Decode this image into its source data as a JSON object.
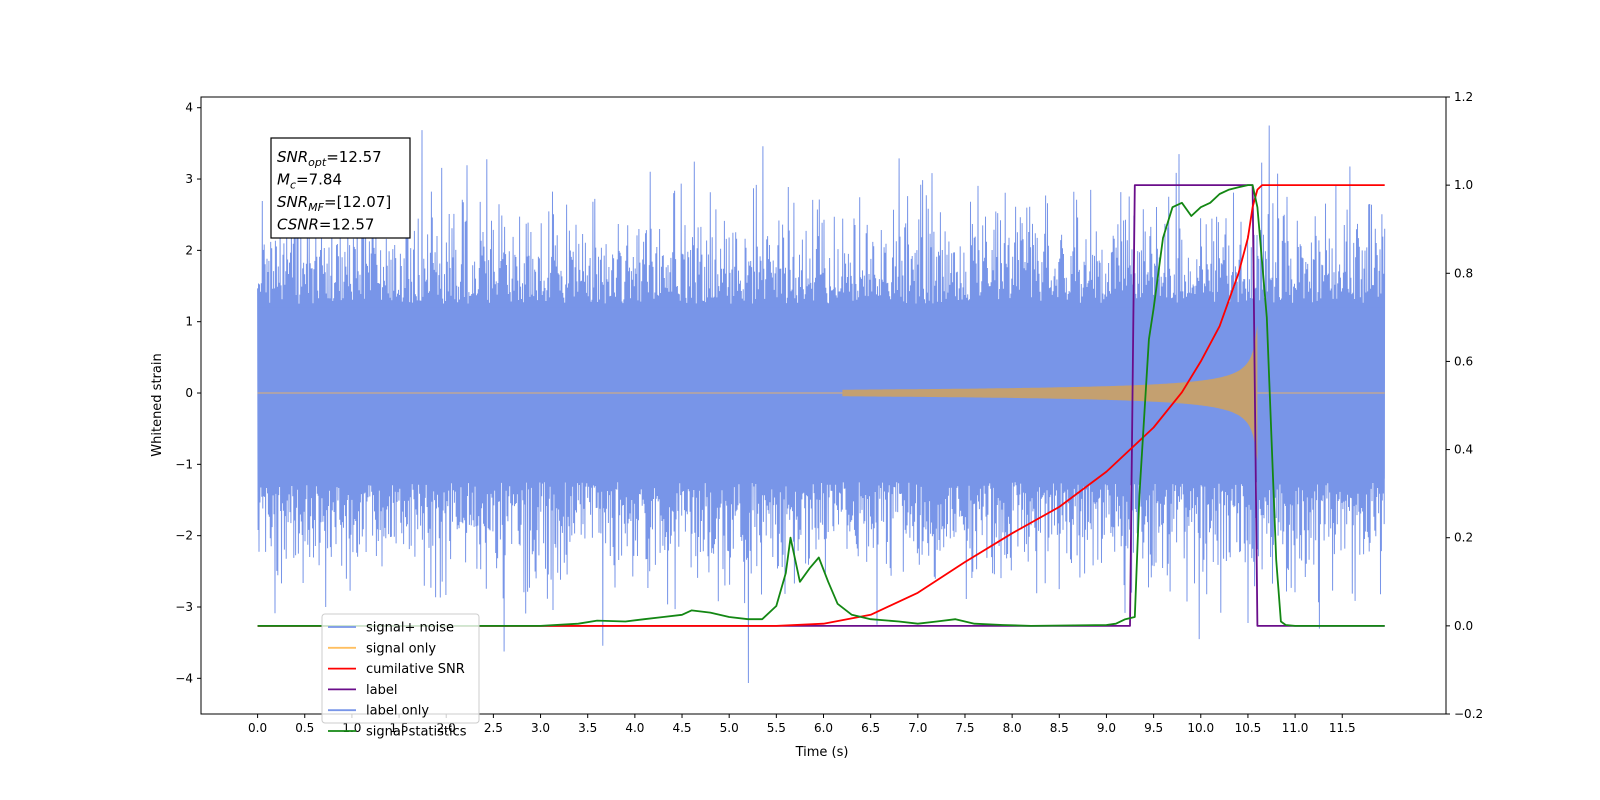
{
  "chart_data": {
    "type": "line",
    "xlabel": "Time (s)",
    "ylabel_left": "Whitened strain",
    "xlim": [
      -0.6,
      12.6
    ],
    "ylim_left": [
      -4.5,
      4.15
    ],
    "ylim_right": [
      -0.2,
      1.2
    ],
    "x_ticks": [
      "0.0",
      "0.5",
      "1.0",
      "1.5",
      "2.0",
      "2.5",
      "3.0",
      "3.5",
      "4.0",
      "4.5",
      "5.0",
      "5.5",
      "6.0",
      "6.5",
      "7.0",
      "7.5",
      "8.0",
      "8.5",
      "9.0",
      "9.5",
      "10.0",
      "10.5",
      "11.0",
      "11.5"
    ],
    "y_ticks_left": [
      "−4",
      "−3",
      "−2",
      "−1",
      "0",
      "1",
      "2",
      "3",
      "4"
    ],
    "y_ticks_right": [
      "−0.2",
      "0.0",
      "0.2",
      "0.4",
      "0.6",
      "0.8",
      "1.0",
      "1.2"
    ],
    "colors": {
      "noise": "#7895e8",
      "signal": "#c4a070",
      "cumulative": "#ff0000",
      "label": "#6a0d8a",
      "statistics": "#138713"
    },
    "legend": {
      "placement": "lower-left",
      "entries": [
        {
          "label": "signal+ noise",
          "color": "#7895e8"
        },
        {
          "label": "signal only",
          "color": "#ffbf60"
        },
        {
          "label": "cumilative SNR",
          "color": "#ff0000"
        },
        {
          "label": "label",
          "color": "#6a0d8a"
        },
        {
          "label": "label only",
          "color": "#7895e8"
        },
        {
          "label": "signal statistics",
          "color": "#138713"
        }
      ]
    },
    "annotation": [
      {
        "main": "SNR",
        "sub": "opt",
        "rest": "=12.57"
      },
      {
        "main": "M",
        "sub": "c",
        "rest": "=7.84"
      },
      {
        "main": "SNR",
        "sub": "MF",
        "rest": "=[12.07]"
      },
      {
        "main": "CSNR",
        "sub": "",
        "rest": "=12.57"
      }
    ],
    "series": [
      {
        "name": "label",
        "axis": "right",
        "x": [
          0.0,
          9.25,
          9.3,
          10.55,
          10.6,
          11.95
        ],
        "values": [
          0.0,
          0.0,
          1.0,
          1.0,
          0.0,
          0.0
        ]
      },
      {
        "name": "cumilative SNR",
        "axis": "right",
        "x": [
          0.0,
          5.5,
          6.0,
          6.5,
          7.0,
          7.5,
          8.0,
          8.5,
          9.0,
          9.5,
          9.8,
          10.0,
          10.2,
          10.4,
          10.5,
          10.55,
          10.6,
          10.65,
          11.95
        ],
        "values": [
          0.0,
          0.0,
          0.005,
          0.025,
          0.075,
          0.145,
          0.21,
          0.27,
          0.35,
          0.45,
          0.53,
          0.6,
          0.68,
          0.8,
          0.88,
          0.95,
          0.99,
          1.0,
          1.0
        ]
      },
      {
        "name": "signal statistics",
        "axis": "right",
        "x": [
          0.0,
          3.0,
          3.4,
          3.6,
          3.9,
          4.1,
          4.3,
          4.5,
          4.6,
          4.8,
          5.0,
          5.2,
          5.35,
          5.5,
          5.6,
          5.65,
          5.75,
          5.85,
          5.95,
          6.05,
          6.15,
          6.3,
          6.5,
          6.8,
          7.0,
          7.2,
          7.4,
          7.6,
          7.9,
          8.2,
          9.0,
          9.1,
          9.2,
          9.3,
          9.35,
          9.45,
          9.5,
          9.6,
          9.7,
          9.8,
          9.9,
          10.0,
          10.1,
          10.2,
          10.3,
          10.4,
          10.5,
          10.55,
          10.6,
          10.7,
          10.8,
          10.85,
          10.9,
          11.0,
          11.95
        ],
        "values": [
          0.0,
          0.0,
          0.005,
          0.012,
          0.01,
          0.015,
          0.02,
          0.025,
          0.035,
          0.03,
          0.02,
          0.015,
          0.015,
          0.045,
          0.12,
          0.2,
          0.1,
          0.13,
          0.155,
          0.1,
          0.05,
          0.025,
          0.015,
          0.01,
          0.005,
          0.01,
          0.015,
          0.005,
          0.002,
          0.0,
          0.002,
          0.005,
          0.015,
          0.02,
          0.3,
          0.65,
          0.72,
          0.88,
          0.95,
          0.96,
          0.93,
          0.95,
          0.96,
          0.98,
          0.99,
          0.995,
          1.0,
          1.0,
          0.95,
          0.7,
          0.15,
          0.01,
          0.002,
          0.0,
          0.0
        ]
      }
    ]
  }
}
